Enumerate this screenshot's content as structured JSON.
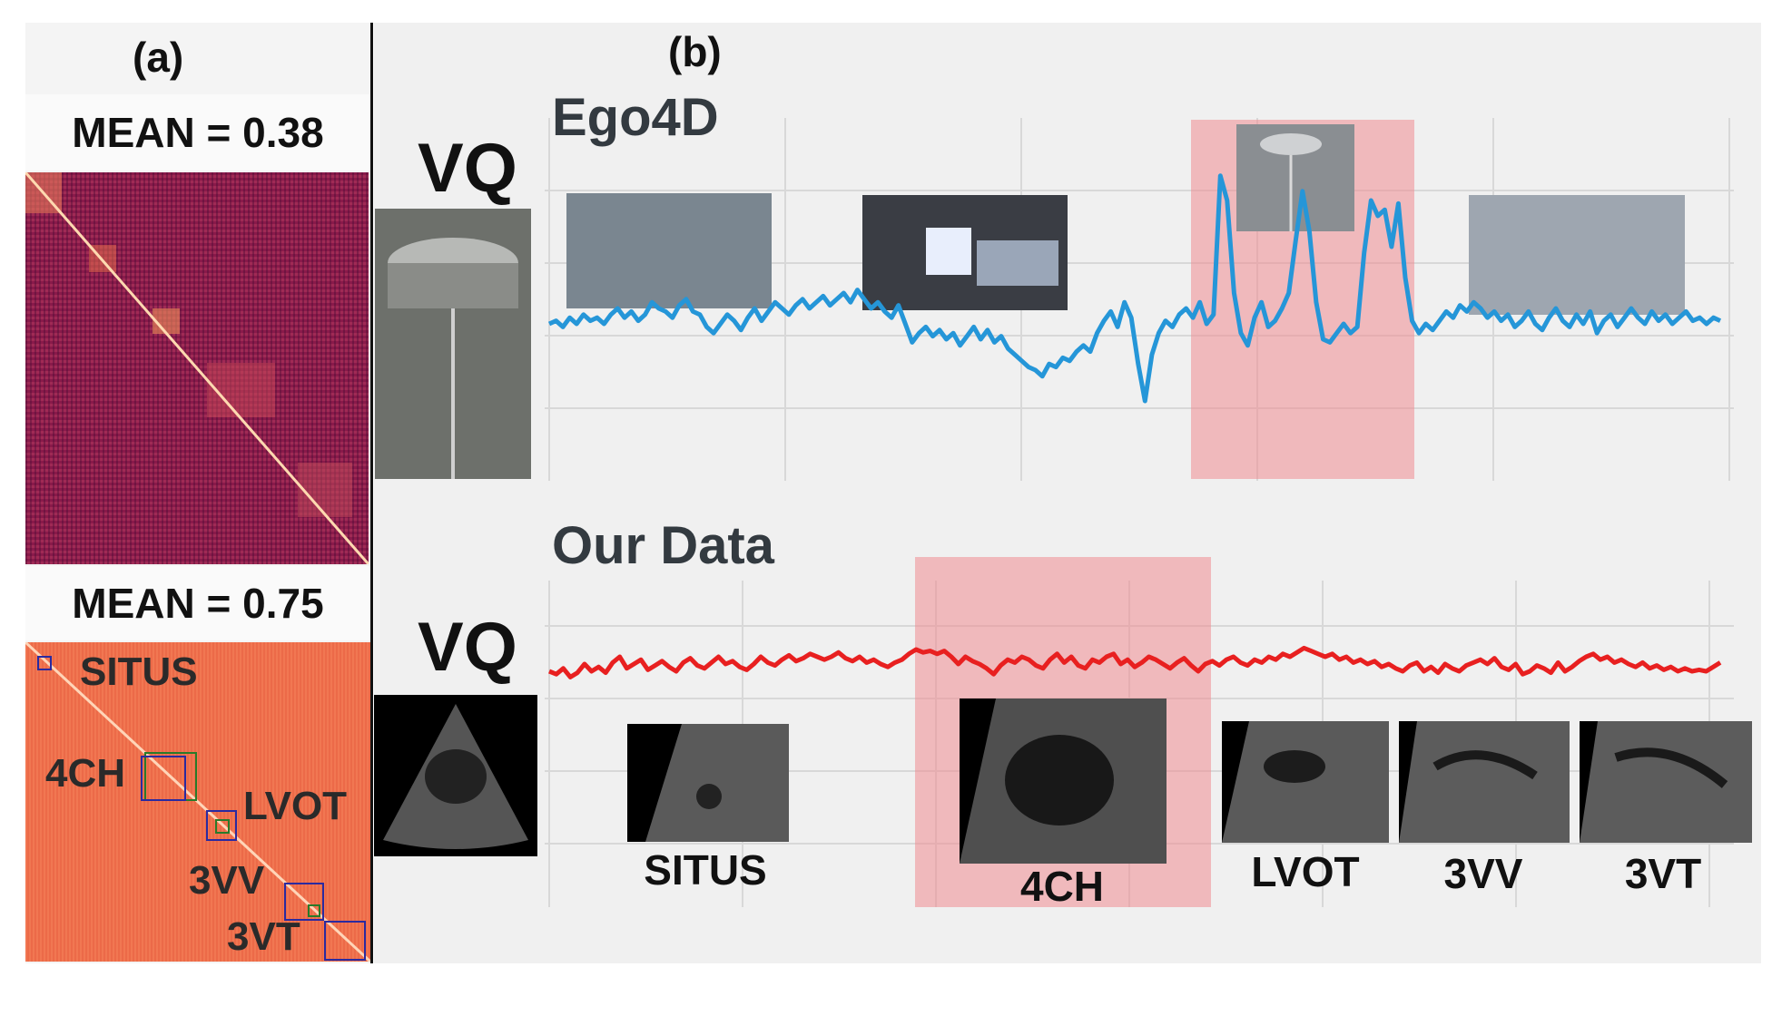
{
  "panel_a": {
    "title": "(a)",
    "top_mean": "MEAN = 0.38",
    "bottom_mean": "MEAN = 0.75",
    "labels": [
      "SITUS",
      "4CH",
      "LVOT",
      "3VV",
      "3VT"
    ]
  },
  "panel_b": {
    "title": "(b)",
    "ego_section": "Ego4D",
    "our_section": "Our Data",
    "vq_label": "VQ",
    "plane_labels": [
      "SITUS",
      "4CH",
      "LVOT",
      "3VV",
      "3VT"
    ]
  },
  "colors": {
    "ego_line": "#2596d8",
    "our_line": "#e82020",
    "highlight": "#f08c91"
  },
  "series": {
    "ego": [
      0.45,
      0.46,
      0.44,
      0.47,
      0.45,
      0.48,
      0.46,
      0.47,
      0.45,
      0.48,
      0.5,
      0.47,
      0.49,
      0.46,
      0.48,
      0.52,
      0.5,
      0.49,
      0.47,
      0.51,
      0.53,
      0.49,
      0.48,
      0.44,
      0.42,
      0.45,
      0.48,
      0.46,
      0.43,
      0.47,
      0.5,
      0.46,
      0.49,
      0.52,
      0.5,
      0.48,
      0.51,
      0.53,
      0.5,
      0.52,
      0.54,
      0.51,
      0.53,
      0.55,
      0.52,
      0.56,
      0.53,
      0.5,
      0.52,
      0.49,
      0.47,
      0.51,
      0.45,
      0.39,
      0.42,
      0.44,
      0.41,
      0.43,
      0.4,
      0.42,
      0.38,
      0.41,
      0.44,
      0.4,
      0.43,
      0.39,
      0.41,
      0.37,
      0.35,
      0.33,
      0.31,
      0.3,
      0.28,
      0.32,
      0.31,
      0.34,
      0.33,
      0.36,
      0.38,
      0.36,
      0.42,
      0.46,
      0.49,
      0.44,
      0.52,
      0.47,
      0.32,
      0.2,
      0.35,
      0.42,
      0.46,
      0.44,
      0.48,
      0.5,
      0.47,
      0.52,
      0.45,
      0.48,
      0.93,
      0.85,
      0.55,
      0.42,
      0.38,
      0.47,
      0.52,
      0.44,
      0.46,
      0.5,
      0.55,
      0.72,
      0.88,
      0.75,
      0.52,
      0.4,
      0.39,
      0.42,
      0.45,
      0.42,
      0.44,
      0.68,
      0.85,
      0.8,
      0.82,
      0.7,
      0.84,
      0.6,
      0.46,
      0.42,
      0.45,
      0.43,
      0.46,
      0.49,
      0.47,
      0.51,
      0.49,
      0.52,
      0.5,
      0.47,
      0.49,
      0.46,
      0.48,
      0.44,
      0.46,
      0.49,
      0.45,
      0.43,
      0.47,
      0.5,
      0.46,
      0.44,
      0.48,
      0.45,
      0.49,
      0.42,
      0.46,
      0.48,
      0.44,
      0.47,
      0.5,
      0.47,
      0.45,
      0.49,
      0.46,
      0.48,
      0.45,
      0.47,
      0.49,
      0.46,
      0.47,
      0.45,
      0.47,
      0.46
    ],
    "ours": [
      0.5,
      0.48,
      0.52,
      0.46,
      0.49,
      0.55,
      0.5,
      0.53,
      0.49,
      0.56,
      0.6,
      0.52,
      0.55,
      0.58,
      0.51,
      0.54,
      0.57,
      0.53,
      0.5,
      0.56,
      0.59,
      0.54,
      0.52,
      0.56,
      0.6,
      0.55,
      0.57,
      0.53,
      0.51,
      0.55,
      0.6,
      0.56,
      0.54,
      0.58,
      0.61,
      0.57,
      0.59,
      0.62,
      0.6,
      0.58,
      0.6,
      0.63,
      0.59,
      0.57,
      0.6,
      0.56,
      0.58,
      0.55,
      0.53,
      0.56,
      0.58,
      0.62,
      0.65,
      0.63,
      0.64,
      0.62,
      0.64,
      0.6,
      0.55,
      0.6,
      0.57,
      0.55,
      0.52,
      0.48,
      0.54,
      0.58,
      0.56,
      0.6,
      0.58,
      0.54,
      0.52,
      0.58,
      0.62,
      0.56,
      0.6,
      0.54,
      0.52,
      0.58,
      0.56,
      0.6,
      0.62,
      0.55,
      0.58,
      0.53,
      0.56,
      0.6,
      0.58,
      0.55,
      0.52,
      0.56,
      0.59,
      0.54,
      0.5,
      0.55,
      0.57,
      0.54,
      0.58,
      0.6,
      0.56,
      0.54,
      0.58,
      0.56,
      0.6,
      0.58,
      0.62,
      0.6,
      0.63,
      0.66,
      0.64,
      0.62,
      0.6,
      0.62,
      0.58,
      0.6,
      0.56,
      0.58,
      0.55,
      0.57,
      0.53,
      0.55,
      0.52,
      0.5,
      0.54,
      0.56,
      0.5,
      0.53,
      0.49,
      0.55,
      0.52,
      0.5,
      0.54,
      0.56,
      0.58,
      0.55,
      0.59,
      0.53,
      0.51,
      0.55,
      0.48,
      0.5,
      0.54,
      0.52,
      0.49,
      0.56,
      0.5,
      0.53,
      0.57,
      0.6,
      0.62,
      0.58,
      0.6,
      0.56,
      0.58,
      0.55,
      0.53,
      0.56,
      0.52,
      0.54,
      0.51,
      0.53,
      0.5,
      0.52,
      0.5,
      0.51,
      0.5,
      0.53,
      0.56
    ]
  }
}
